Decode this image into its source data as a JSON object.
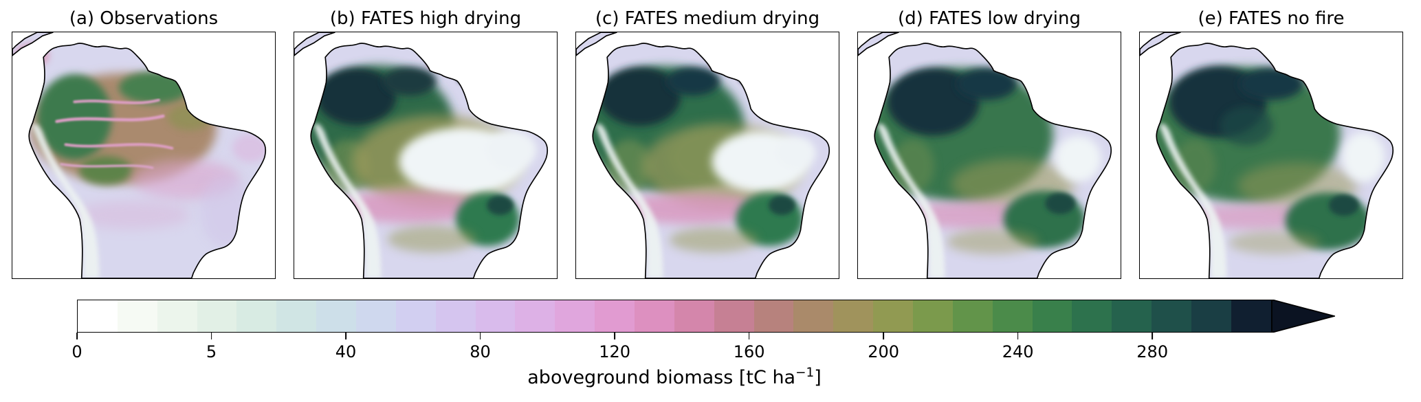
{
  "chart_data": {
    "type": "heatmap",
    "layout": "five map panels over one shared horizontal colorbar with right-pointing extend arrow",
    "panels": [
      {
        "id": "a",
        "title": "(a) Observations"
      },
      {
        "id": "b",
        "title": "(b) FATES high drying"
      },
      {
        "id": "c",
        "title": "(c) FATES medium drying"
      },
      {
        "id": "d",
        "title": "(d) FATES low drying"
      },
      {
        "id": "e",
        "title": "(e) FATES no fire"
      }
    ],
    "colorbar": {
      "label": "aboveground biomass [tC ha⁻¹]",
      "label_prefix": "aboveground biomass [tC ha",
      "label_superscript": "−1",
      "label_suffix": "]",
      "ticks": [
        0,
        5,
        40,
        80,
        120,
        160,
        200,
        240,
        280
      ],
      "orientation": "horizontal",
      "extend": "max",
      "colors": [
        "#ffffff",
        "#f6faf4",
        "#ecf5ec",
        "#e2f0e6",
        "#d8ebe3",
        "#d0e5e4",
        "#cddfe9",
        "#cfd8ee",
        "#d2cff1",
        "#d5c5ef",
        "#d9bbec",
        "#ddb1e6",
        "#e0a6dd",
        "#e19bd1",
        "#dd90c0",
        "#d486ab",
        "#c68094",
        "#b7827d",
        "#aa8a6a",
        "#a0935c",
        "#919a52",
        "#7b9a4c",
        "#62944a",
        "#4b8b4a",
        "#39804b",
        "#2d724d",
        "#25624d",
        "#1f504a",
        "#1a3e44",
        "#101f30"
      ],
      "arrow_color": "#0b1322"
    },
    "palette": {
      "ocean": "#ffffff",
      "low_biomass_lavender": "#d8d7ee",
      "andes_pale": "#edf3f2",
      "observed_amazon_brown": "#aa8a6e",
      "forest_green": "#2e6b4a",
      "dark_forest_navy": "#16313b",
      "olive_transition": "#9c9a5c",
      "pink_transition": "#d995bd",
      "drying_white_patch": "#f0f5f7",
      "coastline": "#000000"
    }
  }
}
